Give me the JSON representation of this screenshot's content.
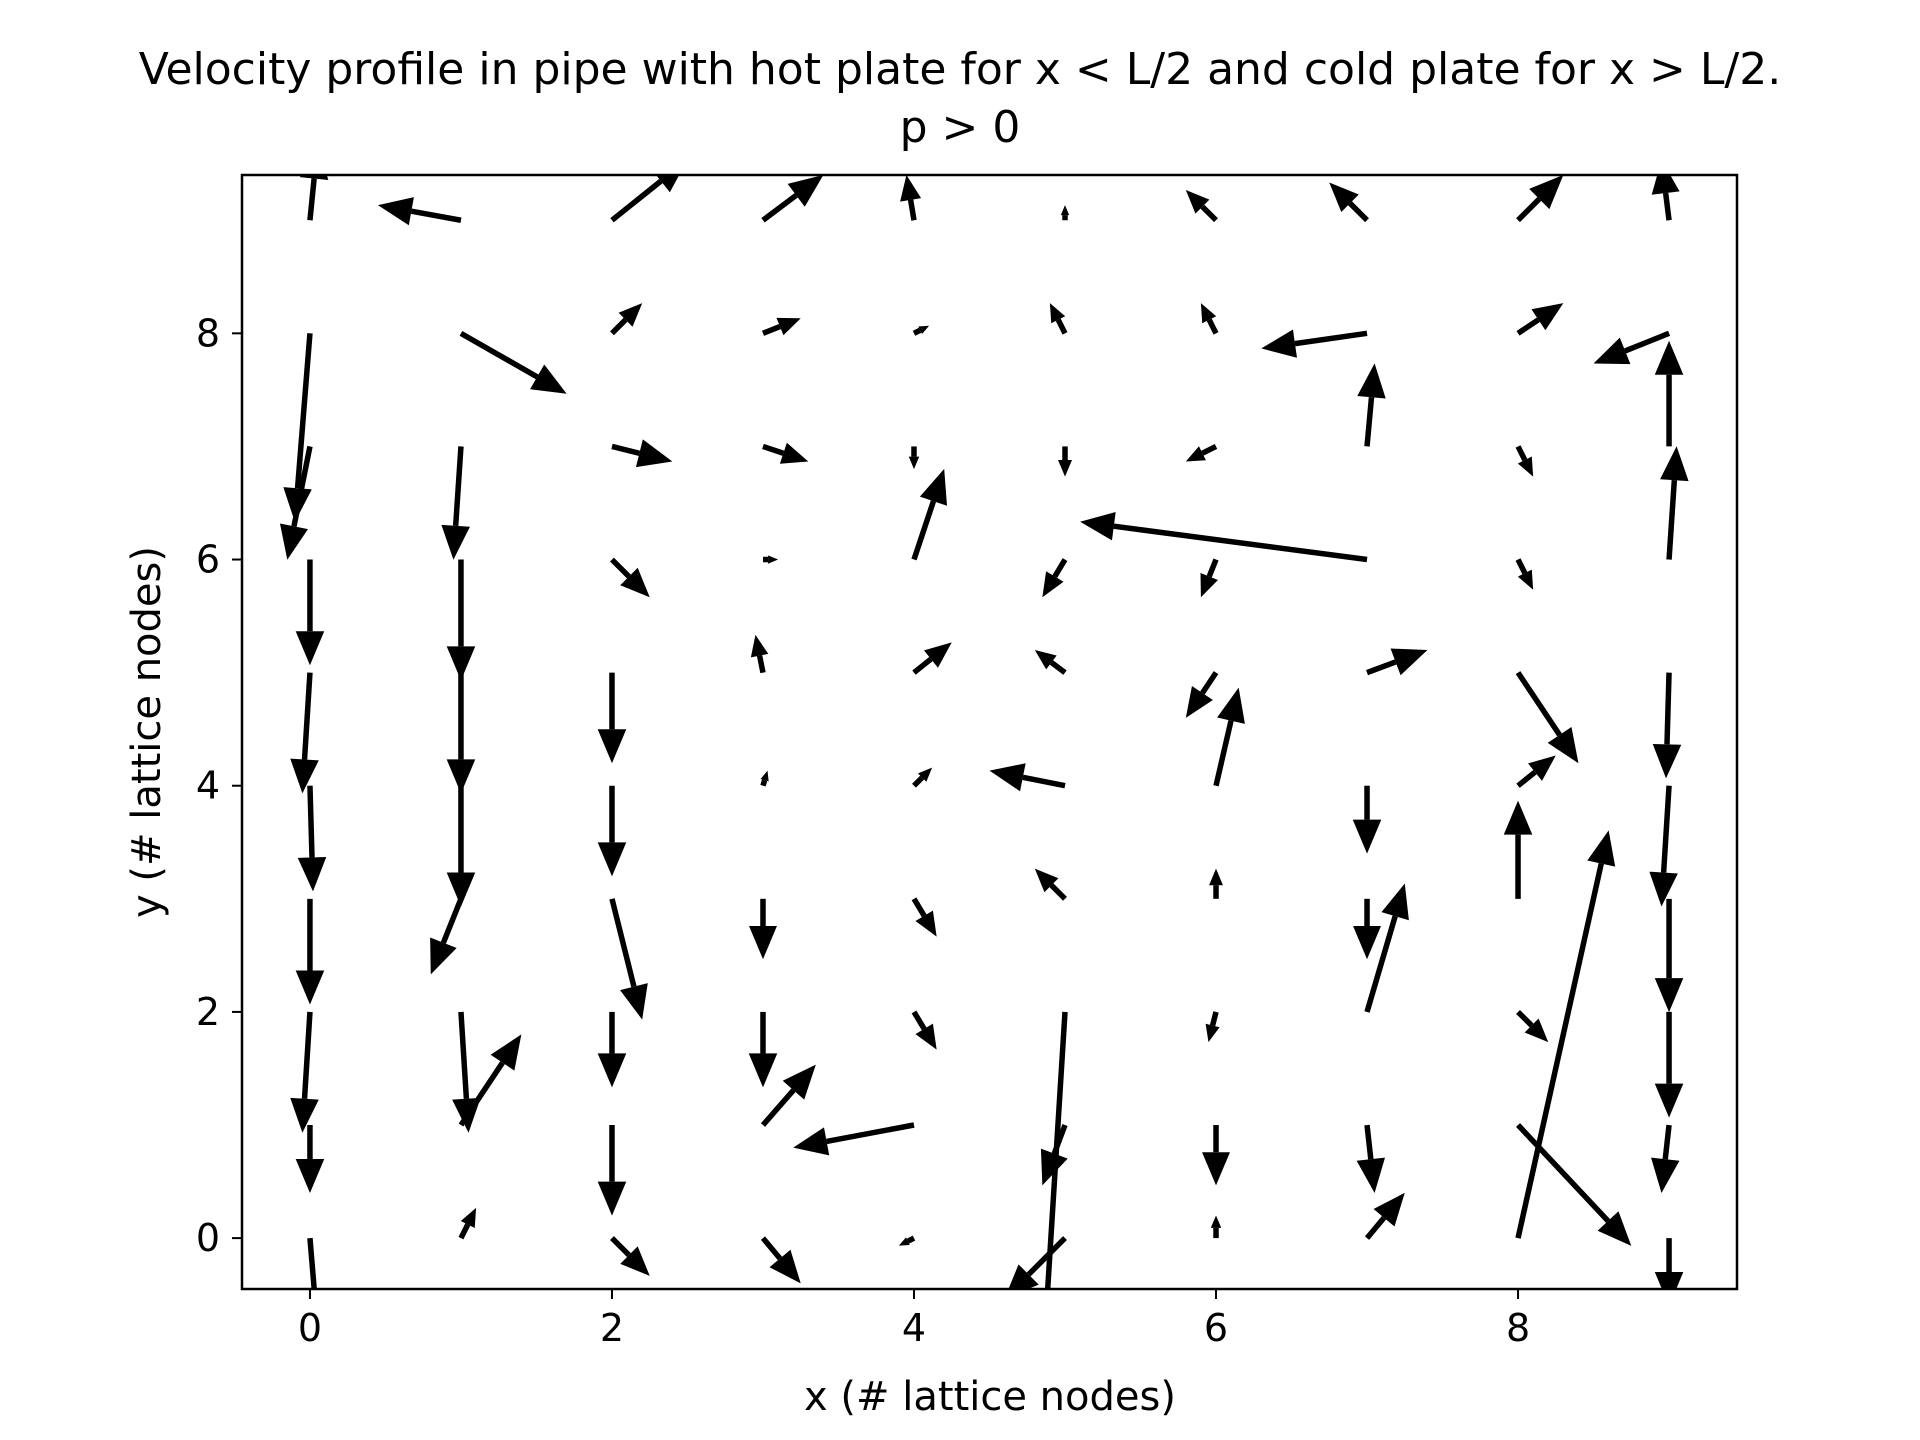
{
  "chart_data": {
    "type": "quiver",
    "title": "Velocity profile in pipe with hot plate for x < L/2 and cold plate for x > L/2.",
    "subtitle": "p > 0",
    "xlabel": "x (# lattice nodes)",
    "ylabel": "y (# lattice nodes)",
    "xlim": [
      -0.45,
      9.45
    ],
    "ylim": [
      -0.45,
      9.4
    ],
    "xticks": [
      0,
      2,
      4,
      6,
      8
    ],
    "yticks": [
      0,
      2,
      4,
      6,
      8
    ],
    "xtick_labels": [
      "0",
      "2",
      "4",
      "6",
      "8"
    ],
    "ytick_labels": [
      "0",
      "2",
      "4",
      "6",
      "8"
    ],
    "grid": false,
    "arrow_color": "#000000",
    "vectors": [
      {
        "x": 0,
        "y": 0,
        "u": 0.05,
        "v": -0.6
      },
      {
        "x": 0,
        "y": 1,
        "u": 0.0,
        "v": -0.45
      },
      {
        "x": 0,
        "y": 2,
        "u": -0.05,
        "v": -0.8
      },
      {
        "x": 0,
        "y": 3,
        "u": 0.0,
        "v": -0.7
      },
      {
        "x": 0,
        "y": 4,
        "u": 0.02,
        "v": -0.7
      },
      {
        "x": 0,
        "y": 5,
        "u": -0.05,
        "v": -0.8
      },
      {
        "x": 0,
        "y": 6,
        "u": 0.0,
        "v": -0.7
      },
      {
        "x": 0,
        "y": 7,
        "u": -0.15,
        "v": -0.75
      },
      {
        "x": 0,
        "y": 8,
        "u": -0.1,
        "v": -1.25
      },
      {
        "x": 0,
        "y": 9,
        "u": 0.05,
        "v": 0.5
      },
      {
        "x": 1,
        "y": 0,
        "u": 0.1,
        "v": 0.2
      },
      {
        "x": 1,
        "y": 1,
        "u": 0.4,
        "v": 0.6
      },
      {
        "x": 1,
        "y": 2,
        "u": 0.05,
        "v": -0.8
      },
      {
        "x": 1,
        "y": 3,
        "u": -0.2,
        "v": -0.5
      },
      {
        "x": 1,
        "y": 4,
        "u": 0.0,
        "v": -0.8
      },
      {
        "x": 1,
        "y": 5,
        "u": 0.0,
        "v": -0.8
      },
      {
        "x": 1,
        "y": 6,
        "u": 0.0,
        "v": -0.8
      },
      {
        "x": 1,
        "y": 7,
        "u": -0.05,
        "v": -0.75
      },
      {
        "x": 1,
        "y": 8,
        "u": 0.7,
        "v": -0.4
      },
      {
        "x": 1,
        "y": 9,
        "u": -0.55,
        "v": 0.1
      },
      {
        "x": 2,
        "y": 0,
        "u": 0.25,
        "v": -0.25
      },
      {
        "x": 2,
        "y": 1,
        "u": 0.0,
        "v": -0.6
      },
      {
        "x": 2,
        "y": 2,
        "u": 0.0,
        "v": -0.5
      },
      {
        "x": 2,
        "y": 3,
        "u": 0.2,
        "v": -0.8
      },
      {
        "x": 2,
        "y": 4,
        "u": 0.0,
        "v": -0.6
      },
      {
        "x": 2,
        "y": 5,
        "u": 0.0,
        "v": -0.6
      },
      {
        "x": 2,
        "y": 6,
        "u": 0.25,
        "v": -0.25
      },
      {
        "x": 2,
        "y": 7,
        "u": 0.4,
        "v": -0.1
      },
      {
        "x": 2,
        "y": 8,
        "u": 0.2,
        "v": 0.2
      },
      {
        "x": 2,
        "y": 9,
        "u": 0.5,
        "v": 0.4
      },
      {
        "x": 3,
        "y": 0,
        "u": 0.25,
        "v": -0.3
      },
      {
        "x": 3,
        "y": 1,
        "u": 0.35,
        "v": 0.4
      },
      {
        "x": 3,
        "y": 2,
        "u": 0.0,
        "v": -0.5
      },
      {
        "x": 3,
        "y": 3,
        "u": 0.0,
        "v": -0.4
      },
      {
        "x": 3,
        "y": 4,
        "u": 0.03,
        "v": 0.1
      },
      {
        "x": 3,
        "y": 5,
        "u": -0.05,
        "v": 0.25
      },
      {
        "x": 3,
        "y": 6,
        "u": 0.1,
        "v": 0.0
      },
      {
        "x": 3,
        "y": 7,
        "u": 0.3,
        "v": -0.1
      },
      {
        "x": 3,
        "y": 8,
        "u": 0.25,
        "v": 0.1
      },
      {
        "x": 3,
        "y": 9,
        "u": 0.4,
        "v": 0.3
      },
      {
        "x": 4,
        "y": 0,
        "u": -0.1,
        "v": -0.05
      },
      {
        "x": 4,
        "y": 1,
        "u": -0.8,
        "v": -0.15
      },
      {
        "x": 4,
        "y": 2,
        "u": 0.15,
        "v": -0.25
      },
      {
        "x": 4,
        "y": 3,
        "u": 0.15,
        "v": -0.25
      },
      {
        "x": 4,
        "y": 4,
        "u": 0.12,
        "v": 0.12
      },
      {
        "x": 4,
        "y": 5,
        "u": 0.25,
        "v": 0.2
      },
      {
        "x": 4,
        "y": 6,
        "u": 0.2,
        "v": 0.6
      },
      {
        "x": 4,
        "y": 7,
        "u": 0.0,
        "v": -0.15
      },
      {
        "x": 4,
        "y": 8,
        "u": 0.1,
        "v": 0.05
      },
      {
        "x": 4,
        "y": 9,
        "u": -0.05,
        "v": 0.3
      },
      {
        "x": 5,
        "y": 0,
        "u": -0.4,
        "v": -0.4
      },
      {
        "x": 5,
        "y": 1,
        "u": -0.15,
        "v": -0.4
      },
      {
        "x": 5,
        "y": 2,
        "u": -0.15,
        "v": -2.4
      },
      {
        "x": 5,
        "y": 3,
        "u": -0.2,
        "v": 0.2
      },
      {
        "x": 5,
        "y": 4,
        "u": -0.5,
        "v": 0.1
      },
      {
        "x": 5,
        "y": 5,
        "u": -0.2,
        "v": 0.15
      },
      {
        "x": 5,
        "y": 6,
        "u": -0.15,
        "v": -0.25
      },
      {
        "x": 5,
        "y": 7,
        "u": 0.0,
        "v": -0.2
      },
      {
        "x": 5,
        "y": 8,
        "u": -0.1,
        "v": 0.2
      },
      {
        "x": 5,
        "y": 9,
        "u": 0.0,
        "v": 0.1
      },
      {
        "x": 6,
        "y": 0,
        "u": 0.0,
        "v": 0.15
      },
      {
        "x": 6,
        "y": 1,
        "u": 0.0,
        "v": -0.4
      },
      {
        "x": 6,
        "y": 2,
        "u": -0.05,
        "v": -0.2
      },
      {
        "x": 6,
        "y": 3,
        "u": 0.0,
        "v": 0.2
      },
      {
        "x": 6,
        "y": 4,
        "u": 0.15,
        "v": 0.65
      },
      {
        "x": 6,
        "y": 5,
        "u": -0.2,
        "v": -0.3
      },
      {
        "x": 6,
        "y": 6,
        "u": -0.1,
        "v": -0.25
      },
      {
        "x": 6,
        "y": 7,
        "u": -0.2,
        "v": -0.1
      },
      {
        "x": 6,
        "y": 8,
        "u": -0.1,
        "v": 0.2
      },
      {
        "x": 6,
        "y": 9,
        "u": -0.2,
        "v": 0.2
      },
      {
        "x": 7,
        "y": 0,
        "u": 0.25,
        "v": 0.3
      },
      {
        "x": 7,
        "y": 1,
        "u": 0.05,
        "v": -0.45
      },
      {
        "x": 7,
        "y": 2,
        "u": 0.25,
        "v": 0.85
      },
      {
        "x": 7,
        "y": 3,
        "u": 0.0,
        "v": -0.4
      },
      {
        "x": 7,
        "y": 4,
        "u": 0.0,
        "v": -0.45
      },
      {
        "x": 7,
        "y": 5,
        "u": 0.4,
        "v": 0.15
      },
      {
        "x": 7,
        "y": 6,
        "u": -1.9,
        "v": 0.25
      },
      {
        "x": 7,
        "y": 7,
        "u": 0.05,
        "v": 0.55
      },
      {
        "x": 7,
        "y": 8,
        "u": -0.7,
        "v": -0.1
      },
      {
        "x": 7,
        "y": 9,
        "u": -0.25,
        "v": 0.25
      },
      {
        "x": 8,
        "y": 0,
        "u": 0.6,
        "v": 2.7
      },
      {
        "x": 8,
        "y": 1,
        "u": 0.75,
        "v": -0.8
      },
      {
        "x": 8,
        "y": 2,
        "u": 0.2,
        "v": -0.2
      },
      {
        "x": 8,
        "y": 3,
        "u": 0.0,
        "v": 0.65
      },
      {
        "x": 8,
        "y": 4,
        "u": 0.25,
        "v": 0.2
      },
      {
        "x": 8,
        "y": 5,
        "u": 0.4,
        "v": -0.6
      },
      {
        "x": 8,
        "y": 6,
        "u": 0.1,
        "v": -0.2
      },
      {
        "x": 8,
        "y": 7,
        "u": 0.1,
        "v": -0.2
      },
      {
        "x": 8,
        "y": 8,
        "u": 0.3,
        "v": 0.2
      },
      {
        "x": 8,
        "y": 9,
        "u": 0.3,
        "v": 0.3
      },
      {
        "x": 9,
        "y": 0,
        "u": 0.0,
        "v": -0.45
      },
      {
        "x": 9,
        "y": 1,
        "u": -0.05,
        "v": -0.45
      },
      {
        "x": 9,
        "y": 2,
        "u": 0.0,
        "v": -0.7
      },
      {
        "x": 9,
        "y": 3,
        "u": 0.0,
        "v": -0.75
      },
      {
        "x": 9,
        "y": 4,
        "u": -0.05,
        "v": -0.8
      },
      {
        "x": 9,
        "y": 5,
        "u": -0.02,
        "v": -0.7
      },
      {
        "x": 9,
        "y": 6,
        "u": 0.05,
        "v": 0.75
      },
      {
        "x": 9,
        "y": 7,
        "u": 0.0,
        "v": 0.7
      },
      {
        "x": 9,
        "y": 8,
        "u": -0.5,
        "v": -0.2
      },
      {
        "x": 9,
        "y": 9,
        "u": -0.05,
        "v": 0.4
      }
    ]
  }
}
